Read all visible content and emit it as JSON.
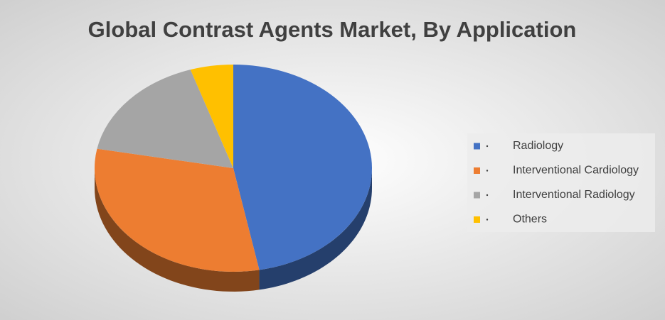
{
  "chart_data": {
    "type": "pie",
    "title": "Global Contrast Agents Market, By Application",
    "categories": [
      "Radiology",
      "Interventional Cardiology",
      "Interventional Radiology",
      "Others"
    ],
    "values": [
      47,
      31,
      17,
      5
    ],
    "colors": [
      "#4472c4",
      "#ed7d31",
      "#a5a5a5",
      "#ffc000"
    ],
    "legend": "right"
  }
}
